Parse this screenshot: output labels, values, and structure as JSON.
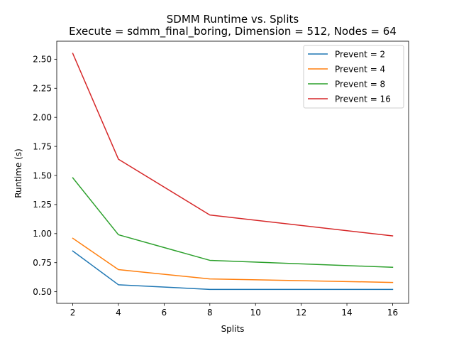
{
  "chart_data": {
    "type": "line",
    "title": "SDMM Runtime vs. Splits",
    "subtitle": "Execute = sdmm_final_boring, Dimension = 512, Nodes = 64",
    "xlabel": "Splits",
    "ylabel": "Runtime (s)",
    "x": [
      2,
      4,
      8,
      16
    ],
    "xlim": [
      1.3,
      16.7
    ],
    "ylim": [
      0.4,
      2.655
    ],
    "xticks": [
      2,
      4,
      6,
      8,
      10,
      12,
      14,
      16
    ],
    "yticks": [
      0.5,
      0.75,
      1.0,
      1.25,
      1.5,
      1.75,
      2.0,
      2.25,
      2.5
    ],
    "ytick_labels": [
      "0.50",
      "0.75",
      "1.00",
      "1.25",
      "1.50",
      "1.75",
      "2.00",
      "2.25",
      "2.50"
    ],
    "grid": false,
    "legend_position": "top-right",
    "series": [
      {
        "name": "Prevent = 2",
        "color": "#1f77b4",
        "values": [
          0.85,
          0.56,
          0.52,
          0.52
        ]
      },
      {
        "name": "Prevent = 4",
        "color": "#ff7f0e",
        "values": [
          0.96,
          0.69,
          0.61,
          0.58
        ]
      },
      {
        "name": "Prevent = 8",
        "color": "#2ca02c",
        "values": [
          1.48,
          0.99,
          0.77,
          0.71
        ]
      },
      {
        "name": "Prevent = 16",
        "color": "#d62728",
        "values": [
          2.55,
          1.64,
          1.16,
          0.98
        ]
      }
    ]
  }
}
